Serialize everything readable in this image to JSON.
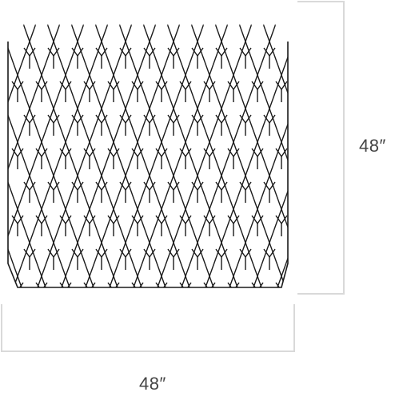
{
  "dimensions": {
    "height_label": "48″",
    "width_label": "48″"
  },
  "colors": {
    "pattern_stroke": "#1a1a1a",
    "dimension_line": "#d9d9d9",
    "label_text": "#444444",
    "background": "#ffffff"
  }
}
